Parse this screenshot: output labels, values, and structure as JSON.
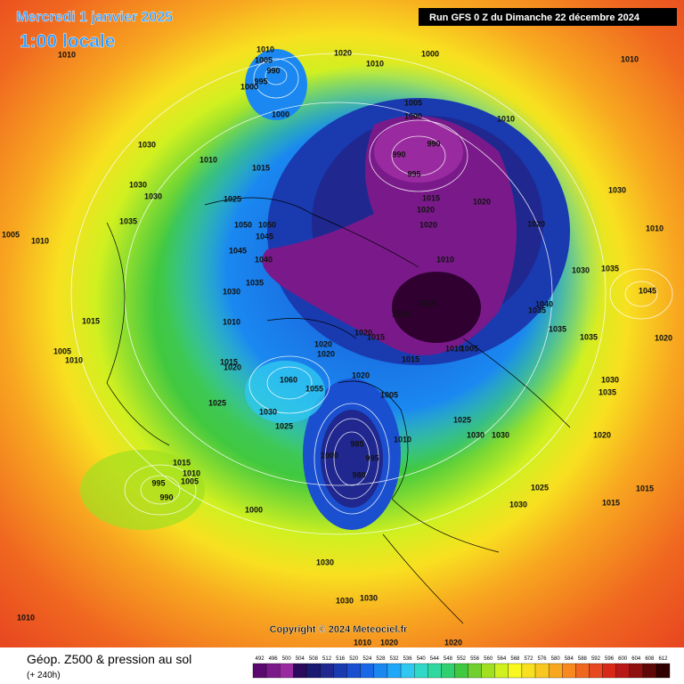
{
  "header": {
    "date": "Mercredi 1 janvier 2025",
    "time": "1:00 locale",
    "run": "Run GFS 0 Z du Dimanche 22 décembre 2024"
  },
  "copyright": "Copyright © 2024 Meteociel.fr",
  "legend": {
    "title": "Géop. Z500 & pression au sol",
    "subtitle": "(+ 240h)",
    "values": [
      492,
      496,
      500,
      504,
      508,
      512,
      516,
      520,
      524,
      528,
      532,
      536,
      540,
      544,
      548,
      552,
      556,
      560,
      564,
      568,
      572,
      576,
      580,
      584,
      588,
      592,
      596,
      600,
      604,
      608,
      612
    ],
    "colors": [
      "#5a0a6e",
      "#7a1a8a",
      "#9a2aa0",
      "#2a0a5a",
      "#1a1a70",
      "#202890",
      "#1a3ab0",
      "#1a50d0",
      "#1a68e8",
      "#1a88f0",
      "#20a8f8",
      "#30c8f0",
      "#30d8c8",
      "#30d8a0",
      "#30d070",
      "#40c840",
      "#70d030",
      "#a0e020",
      "#d0f020",
      "#f8f820",
      "#f8e020",
      "#f8c820",
      "#f8a820",
      "#f88820",
      "#f06820",
      "#e84820",
      "#d82818",
      "#b81818",
      "#901010",
      "#600808",
      "#300000"
    ]
  },
  "isobar_labels": [
    1010,
    1010,
    1005,
    990,
    995,
    1000,
    1020,
    1010,
    1000,
    1010,
    1030,
    1010,
    1000,
    1005,
    1000,
    990,
    990,
    995,
    1010,
    1015,
    1030,
    1030,
    1025,
    1035,
    1005,
    1010,
    1050,
    1050,
    1045,
    1045,
    1040,
    1035,
    1030,
    1015,
    1020,
    1020,
    1020,
    1020,
    1030,
    1010,
    1010,
    1030,
    1035,
    1045,
    1010,
    1015,
    1010,
    1010,
    1020,
    1015,
    1020,
    1020,
    1010,
    1005,
    1040,
    1035,
    1035,
    1035,
    1020,
    1005,
    1010,
    1015,
    1020,
    1015,
    1020,
    1060,
    1055,
    1005,
    1025,
    1030,
    1025,
    1025,
    1030,
    1030,
    1010,
    985,
    1000,
    995,
    980,
    1030,
    1035,
    1020,
    1015,
    1010,
    1005,
    995,
    990,
    1000,
    1025,
    1030,
    1015,
    1015,
    1030,
    1030,
    1030,
    1010,
    1010,
    1020,
    1020
  ]
}
